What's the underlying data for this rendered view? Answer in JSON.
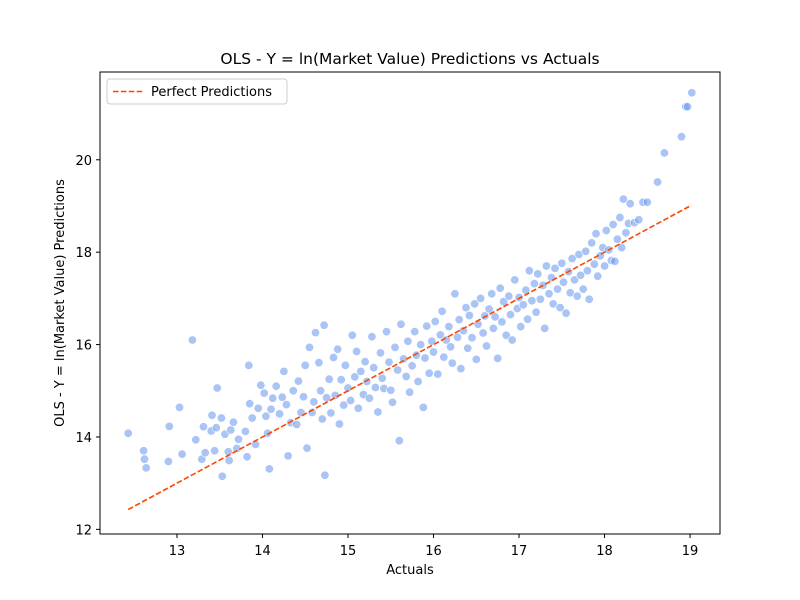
{
  "chart_data": {
    "type": "scatter",
    "title": "OLS - Y = ln(Market Value) Predictions vs Actuals",
    "xlabel": "Actuals",
    "ylabel": "OLS - Y = ln(Market Value) Predictions",
    "xlim": [
      12.1,
      19.35
    ],
    "ylim": [
      11.9,
      21.9
    ],
    "xticks": [
      13,
      14,
      15,
      16,
      17,
      18,
      19
    ],
    "yticks": [
      12,
      14,
      16,
      18,
      20
    ],
    "grid": false,
    "legend": {
      "position": "top-left",
      "entries": [
        "Perfect Predictions"
      ]
    },
    "colors": {
      "points": "#6495ed",
      "reference_line": "#ff4500"
    },
    "reference_line": {
      "name": "Perfect Predictions",
      "style": "dashed",
      "x": [
        12.43,
        19.0
      ],
      "y": [
        12.43,
        19.0
      ]
    },
    "series": [
      {
        "points": [
          [
            12.43,
            14.08
          ],
          [
            12.61,
            13.7
          ],
          [
            12.62,
            13.52
          ],
          [
            12.64,
            13.33
          ],
          [
            12.9,
            13.47
          ],
          [
            12.91,
            14.23
          ],
          [
            13.03,
            14.64
          ],
          [
            13.06,
            13.63
          ],
          [
            13.18,
            16.1
          ],
          [
            13.22,
            13.94
          ],
          [
            13.29,
            13.52
          ],
          [
            13.31,
            14.22
          ],
          [
            13.33,
            13.66
          ],
          [
            13.4,
            14.13
          ],
          [
            13.41,
            14.47
          ],
          [
            13.44,
            13.7
          ],
          [
            13.46,
            14.2
          ],
          [
            13.47,
            15.06
          ],
          [
            13.52,
            14.41
          ],
          [
            13.53,
            13.15
          ],
          [
            13.56,
            14.06
          ],
          [
            13.6,
            13.68
          ],
          [
            13.61,
            13.49
          ],
          [
            13.63,
            14.15
          ],
          [
            13.66,
            14.32
          ],
          [
            13.7,
            13.75
          ],
          [
            13.72,
            13.95
          ],
          [
            13.8,
            14.12
          ],
          [
            13.82,
            13.57
          ],
          [
            13.84,
            15.55
          ],
          [
            13.85,
            14.72
          ],
          [
            13.88,
            14.41
          ],
          [
            13.92,
            13.84
          ],
          [
            13.95,
            14.62
          ],
          [
            13.98,
            15.12
          ],
          [
            14.02,
            14.95
          ],
          [
            14.04,
            14.45
          ],
          [
            14.06,
            14.08
          ],
          [
            14.08,
            13.31
          ],
          [
            14.1,
            14.6
          ],
          [
            14.12,
            14.84
          ],
          [
            14.16,
            15.1
          ],
          [
            14.2,
            14.5
          ],
          [
            14.23,
            14.86
          ],
          [
            14.25,
            15.42
          ],
          [
            14.28,
            14.7
          ],
          [
            14.3,
            13.59
          ],
          [
            14.33,
            14.31
          ],
          [
            14.36,
            15.0
          ],
          [
            14.4,
            14.27
          ],
          [
            14.42,
            15.21
          ],
          [
            14.45,
            14.53
          ],
          [
            14.48,
            14.87
          ],
          [
            14.5,
            15.55
          ],
          [
            14.52,
            13.76
          ],
          [
            14.55,
            15.94
          ],
          [
            14.58,
            14.53
          ],
          [
            14.6,
            14.76
          ],
          [
            14.62,
            16.26
          ],
          [
            14.66,
            15.61
          ],
          [
            14.68,
            15.0
          ],
          [
            14.7,
            14.39
          ],
          [
            14.72,
            16.42
          ],
          [
            14.73,
            13.17
          ],
          [
            14.75,
            14.85
          ],
          [
            14.78,
            15.25
          ],
          [
            14.8,
            14.52
          ],
          [
            14.83,
            15.72
          ],
          [
            14.85,
            14.9
          ],
          [
            14.88,
            15.9
          ],
          [
            14.9,
            14.28
          ],
          [
            14.92,
            15.24
          ],
          [
            14.95,
            14.69
          ],
          [
            14.97,
            15.55
          ],
          [
            15.0,
            15.06
          ],
          [
            15.03,
            14.79
          ],
          [
            15.05,
            16.2
          ],
          [
            15.08,
            15.3
          ],
          [
            15.1,
            15.85
          ],
          [
            15.12,
            14.62
          ],
          [
            15.15,
            15.42
          ],
          [
            15.18,
            14.92
          ],
          [
            15.2,
            15.63
          ],
          [
            15.22,
            15.2
          ],
          [
            15.25,
            14.84
          ],
          [
            15.28,
            16.17
          ],
          [
            15.3,
            15.5
          ],
          [
            15.32,
            15.07
          ],
          [
            15.35,
            14.54
          ],
          [
            15.38,
            15.82
          ],
          [
            15.4,
            15.27
          ],
          [
            15.42,
            15.05
          ],
          [
            15.45,
            16.28
          ],
          [
            15.48,
            15.62
          ],
          [
            15.5,
            15.01
          ],
          [
            15.52,
            14.75
          ],
          [
            15.55,
            15.94
          ],
          [
            15.58,
            15.45
          ],
          [
            15.6,
            13.92
          ],
          [
            15.62,
            16.44
          ],
          [
            15.65,
            15.69
          ],
          [
            15.68,
            15.31
          ],
          [
            15.7,
            16.07
          ],
          [
            15.72,
            14.97
          ],
          [
            15.75,
            15.54
          ],
          [
            15.78,
            16.28
          ],
          [
            15.8,
            15.77
          ],
          [
            15.82,
            15.2
          ],
          [
            15.85,
            16.0
          ],
          [
            15.88,
            14.64
          ],
          [
            15.9,
            15.71
          ],
          [
            15.92,
            16.4
          ],
          [
            15.95,
            15.38
          ],
          [
            15.98,
            16.07
          ],
          [
            16.0,
            15.84
          ],
          [
            16.02,
            16.5
          ],
          [
            16.05,
            15.36
          ],
          [
            16.08,
            16.21
          ],
          [
            16.1,
            16.72
          ],
          [
            16.12,
            15.73
          ],
          [
            16.15,
            16.1
          ],
          [
            16.18,
            16.39
          ],
          [
            16.2,
            15.95
          ],
          [
            16.22,
            15.6
          ],
          [
            16.25,
            17.1
          ],
          [
            16.28,
            16.16
          ],
          [
            16.3,
            16.54
          ],
          [
            16.32,
            15.48
          ],
          [
            16.35,
            16.3
          ],
          [
            16.38,
            16.8
          ],
          [
            16.4,
            15.92
          ],
          [
            16.42,
            16.63
          ],
          [
            16.45,
            16.15
          ],
          [
            16.48,
            16.88
          ],
          [
            16.5,
            15.68
          ],
          [
            16.52,
            16.44
          ],
          [
            16.55,
            17.0
          ],
          [
            16.58,
            16.25
          ],
          [
            16.6,
            16.62
          ],
          [
            16.62,
            15.97
          ],
          [
            16.65,
            16.77
          ],
          [
            16.68,
            17.1
          ],
          [
            16.7,
            16.35
          ],
          [
            16.72,
            16.6
          ],
          [
            16.75,
            15.7
          ],
          [
            16.78,
            17.22
          ],
          [
            16.8,
            16.49
          ],
          [
            16.82,
            16.93
          ],
          [
            16.85,
            16.2
          ],
          [
            16.88,
            17.05
          ],
          [
            16.9,
            16.65
          ],
          [
            16.92,
            16.1
          ],
          [
            16.95,
            17.4
          ],
          [
            16.98,
            16.78
          ],
          [
            17.0,
            17.02
          ],
          [
            17.02,
            16.39
          ],
          [
            17.05,
            16.86
          ],
          [
            17.08,
            17.18
          ],
          [
            17.1,
            16.55
          ],
          [
            17.12,
            17.6
          ],
          [
            17.15,
            16.95
          ],
          [
            17.18,
            17.32
          ],
          [
            17.2,
            16.7
          ],
          [
            17.22,
            17.53
          ],
          [
            17.25,
            16.98
          ],
          [
            17.28,
            17.28
          ],
          [
            17.3,
            16.35
          ],
          [
            17.32,
            17.7
          ],
          [
            17.35,
            17.1
          ],
          [
            17.38,
            17.45
          ],
          [
            17.4,
            16.88
          ],
          [
            17.42,
            17.65
          ],
          [
            17.45,
            17.2
          ],
          [
            17.48,
            16.8
          ],
          [
            17.5,
            17.76
          ],
          [
            17.52,
            17.35
          ],
          [
            17.55,
            16.68
          ],
          [
            17.58,
            17.58
          ],
          [
            17.6,
            17.12
          ],
          [
            17.62,
            17.86
          ],
          [
            17.65,
            17.4
          ],
          [
            17.68,
            17.05
          ],
          [
            17.7,
            17.95
          ],
          [
            17.72,
            17.5
          ],
          [
            17.75,
            17.2
          ],
          [
            17.78,
            18.02
          ],
          [
            17.8,
            17.6
          ],
          [
            17.82,
            16.98
          ],
          [
            17.85,
            18.2
          ],
          [
            17.88,
            17.74
          ],
          [
            17.9,
            18.4
          ],
          [
            17.92,
            17.48
          ],
          [
            17.95,
            17.92
          ],
          [
            17.98,
            18.1
          ],
          [
            18.0,
            17.7
          ],
          [
            18.02,
            18.47
          ],
          [
            18.05,
            18.05
          ],
          [
            18.08,
            17.82
          ],
          [
            18.1,
            18.6
          ],
          [
            18.12,
            17.8
          ],
          [
            18.15,
            18.28
          ],
          [
            18.18,
            18.75
          ],
          [
            18.2,
            18.1
          ],
          [
            18.22,
            19.15
          ],
          [
            18.25,
            18.42
          ],
          [
            18.28,
            18.62
          ],
          [
            18.3,
            19.05
          ],
          [
            18.35,
            18.64
          ],
          [
            18.4,
            18.7
          ],
          [
            18.45,
            19.08
          ],
          [
            18.5,
            19.08
          ],
          [
            18.62,
            19.52
          ],
          [
            18.7,
            20.15
          ],
          [
            18.9,
            20.5
          ],
          [
            18.95,
            21.15
          ],
          [
            18.97,
            21.15
          ],
          [
            19.02,
            21.45
          ]
        ]
      }
    ]
  }
}
